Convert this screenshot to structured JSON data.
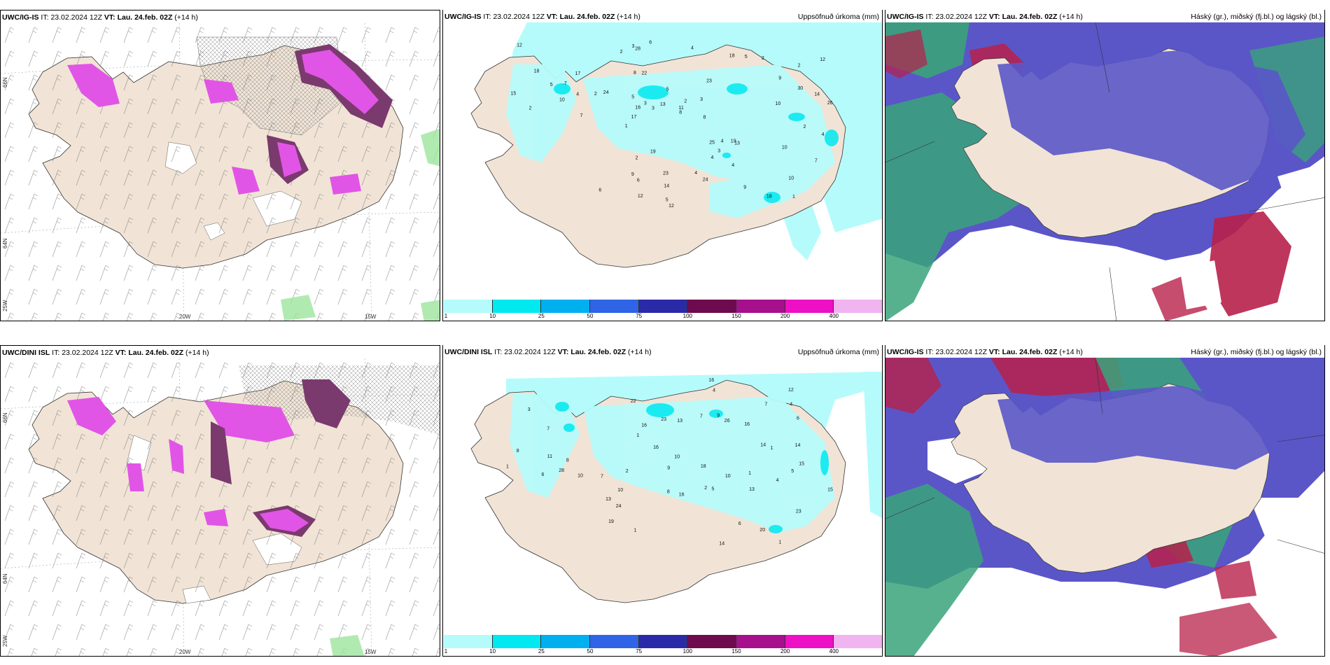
{
  "rows": [
    {
      "wind": {
        "model": "UWC/IG-IS",
        "it_label": "IT:",
        "it": "23.02.2024 12Z",
        "vt_label": "VT:",
        "vt": "Lau. 24.feb. 02Z",
        "lead": "(+14 h)"
      },
      "precip": {
        "model": "UWC/IG-IS",
        "it_label": "IT:",
        "it": "23.02.2024 12Z",
        "vt_label": "VT:",
        "vt": "Lau. 24.feb. 02Z",
        "lead": "(+14 h)",
        "title": "Uppsöfnuð úrkoma (mm)"
      },
      "cloud": {
        "model": "UWC/IG-IS",
        "it_label": "IT:",
        "it": "23.02.2024 12Z",
        "vt_label": "VT:",
        "vt": "Lau. 24.feb. 02Z",
        "lead": "(+14 h)",
        "title": "Háský (gr.), miðský (fj.bl.) og lágský (bl.)"
      }
    },
    {
      "wind": {
        "model": "UWC/DINI ISL",
        "it_label": "IT:",
        "it": "23.02.2024 12Z",
        "vt_label": "VT:",
        "vt": "Lau. 24.feb. 02Z",
        "lead": "(+14 h)"
      },
      "precip": {
        "model": "UWC/DINI ISL",
        "it_label": "IT:",
        "it": "23.02.2024 12Z",
        "vt_label": "VT:",
        "vt": "Lau. 24.feb. 02Z",
        "lead": "(+14 h)",
        "title": "Uppsöfnuð úrkoma (mm)"
      },
      "cloud": {
        "model": "UWC/IG-IS",
        "it_label": "IT:",
        "it": "23.02.2024 12Z",
        "vt_label": "VT:",
        "vt": "Lau. 24.feb. 02Z",
        "lead": "(+14 h)",
        "title": "Háský (gr.), miðský (fj.bl.) og lágský (bl.)"
      }
    }
  ],
  "axes": {
    "lat_66": "66N",
    "lat_64": "64N",
    "lat_65w": "65N",
    "lon_20": "20W",
    "lon_15": "15W",
    "corner_25": "25W"
  },
  "colorbar": {
    "labels": [
      "1",
      "10",
      "25",
      "50",
      "75",
      "100",
      "150",
      "200",
      "400"
    ],
    "colors": [
      "#b6fbfb",
      "#00e8f0",
      "#00b0ee",
      "#2f64e6",
      "#2a2aa8",
      "#6e0a4e",
      "#a6108c",
      "#ee10c4",
      "#f0b4f0"
    ]
  },
  "precip_values_top": [
    "1",
    "2",
    "2",
    "1",
    "23",
    "8",
    "5",
    "24",
    "22",
    "2",
    "13",
    "18",
    "28",
    "26",
    "25",
    "30",
    "17",
    "9",
    "16",
    "17",
    "18",
    "18",
    "10",
    "19",
    "12",
    "2",
    "10",
    "4",
    "14",
    "11",
    "6",
    "8",
    "9",
    "12",
    "3",
    "24",
    "23",
    "2",
    "6",
    "7",
    "15",
    "7",
    "5",
    "4",
    "2",
    "3",
    "7",
    "2",
    "6",
    "4",
    "4",
    "12",
    "5",
    "4",
    "5",
    "14",
    "13",
    "8",
    "10",
    "12",
    "10",
    "19",
    "9",
    "5",
    "4",
    "3",
    "2",
    "3",
    "4",
    "3"
  ],
  "precip_values_bottom": [
    "1",
    "28",
    "2",
    "3",
    "23",
    "7",
    "7",
    "16",
    "23",
    "26",
    "20",
    "24",
    "22",
    "18",
    "1",
    "10",
    "8",
    "12",
    "13",
    "14",
    "15",
    "15",
    "11",
    "10",
    "9",
    "16",
    "4",
    "5",
    "6",
    "13",
    "9",
    "16",
    "4",
    "5",
    "6",
    "7",
    "14",
    "10",
    "16",
    "19",
    "16",
    "2",
    "8",
    "6",
    "4",
    "7",
    "8",
    "10",
    "14",
    "13",
    "1",
    "1",
    "1",
    "1"
  ],
  "colors": {
    "land": "#f1e4d6",
    "snow": "#ffffff",
    "wind_pink": "#e155e6",
    "wind_dark": "#7a3a6e",
    "cloud_high": "#5a56c8",
    "cloud_mid": "#3aa37a",
    "cloud_low": "#b8204a"
  }
}
